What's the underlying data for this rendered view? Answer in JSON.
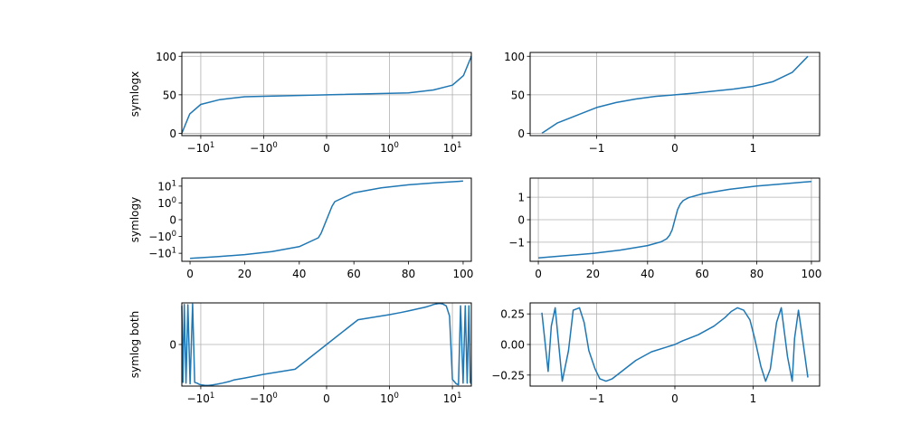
{
  "colors": {
    "line": "#1f77b4",
    "grid": "#b0b0b0",
    "frame": "#000000"
  },
  "chart_data": [
    {
      "type": "line",
      "row": 0,
      "col": 0,
      "ylabel": "symlogx",
      "xscale": "symlog",
      "yscale": "linear",
      "grid": true,
      "xlim": [
        -20,
        20
      ],
      "ylim": [
        -3,
        105
      ],
      "x_ticks": [
        {
          "value": -10,
          "label": "−10",
          "sup": "1"
        },
        {
          "value": -1,
          "label": "−10",
          "sup": "0"
        },
        {
          "value": 0,
          "label": "0",
          "sup": ""
        },
        {
          "value": 1,
          "label": "10",
          "sup": "0"
        },
        {
          "value": 10,
          "label": "10",
          "sup": "1"
        }
      ],
      "y_ticks": [
        {
          "value": 0,
          "label": "0"
        },
        {
          "value": 50,
          "label": "50"
        },
        {
          "value": 100,
          "label": "100"
        }
      ],
      "series": [
        {
          "x": [
            -20,
            -15,
            -10,
            -5,
            -2,
            0,
            2,
            5,
            10,
            15,
            20
          ],
          "y": [
            0,
            25,
            37.5,
            43.75,
            47.5,
            50,
            52.5,
            56.25,
            62.5,
            75,
            100
          ]
        }
      ]
    },
    {
      "type": "line",
      "row": 0,
      "col": 1,
      "ylabel": "",
      "xscale": "linear",
      "yscale": "linear",
      "grid": true,
      "xlim": [
        -1.85,
        1.85
      ],
      "ylim": [
        -3,
        105
      ],
      "x_ticks": [
        {
          "value": -1,
          "label": "−1"
        },
        {
          "value": 0,
          "label": "0"
        },
        {
          "value": 1,
          "label": "1"
        }
      ],
      "y_ticks": [
        {
          "value": 0,
          "label": "0"
        },
        {
          "value": 50,
          "label": "50"
        },
        {
          "value": 100,
          "label": "100"
        }
      ],
      "series": [
        {
          "x": [
            -1.7,
            -1.5,
            -1.25,
            -1.0,
            -0.75,
            -0.5,
            -0.25,
            0,
            0.25,
            0.5,
            0.75,
            1.0,
            1.25,
            1.5,
            1.7
          ],
          "y": [
            0,
            13.5,
            23.5,
            33.5,
            40,
            44.5,
            48,
            50,
            52.2,
            54.8,
            57.5,
            61,
            67,
            79,
            100
          ]
        }
      ]
    },
    {
      "type": "line",
      "row": 1,
      "col": 0,
      "ylabel": "symlogy",
      "xscale": "linear",
      "yscale": "symlog",
      "grid": false,
      "xlim": [
        -3,
        103
      ],
      "ylim": [
        -30,
        30
      ],
      "x_ticks": [
        {
          "value": 0,
          "label": "0"
        },
        {
          "value": 20,
          "label": "20"
        },
        {
          "value": 40,
          "label": "40"
        },
        {
          "value": 60,
          "label": "60"
        },
        {
          "value": 80,
          "label": "80"
        },
        {
          "value": 100,
          "label": "100"
        }
      ],
      "y_ticks": [
        {
          "value": 10,
          "label": "10",
          "sup": "1"
        },
        {
          "value": 1,
          "label": "10",
          "sup": "0"
        },
        {
          "value": 0,
          "label": "0",
          "sup": ""
        },
        {
          "value": -1,
          "label": "−10",
          "sup": "0"
        },
        {
          "value": -10,
          "label": "−10",
          "sup": "1"
        }
      ],
      "series": [
        {
          "x": [
            0,
            10,
            20,
            30,
            40,
            47,
            48,
            52,
            53,
            60,
            70,
            80,
            90,
            100
          ],
          "y": [
            -20,
            -16,
            -12,
            -8,
            -4,
            -1.2,
            -0.8,
            0.8,
            1.2,
            4,
            8,
            12,
            16,
            20
          ]
        }
      ]
    },
    {
      "type": "line",
      "row": 1,
      "col": 1,
      "ylabel": "",
      "xscale": "linear",
      "yscale": "linear",
      "grid": true,
      "xlim": [
        -3,
        103
      ],
      "ylim": [
        -1.85,
        1.85
      ],
      "x_ticks": [
        {
          "value": 0,
          "label": "0"
        },
        {
          "value": 20,
          "label": "20"
        },
        {
          "value": 40,
          "label": "40"
        },
        {
          "value": 60,
          "label": "60"
        },
        {
          "value": 80,
          "label": "80"
        },
        {
          "value": 100,
          "label": "100"
        }
      ],
      "y_ticks": [
        {
          "value": -1,
          "label": "−1"
        },
        {
          "value": 0,
          "label": "0"
        },
        {
          "value": 1,
          "label": "1"
        }
      ],
      "series": [
        {
          "x": [
            0,
            10,
            20,
            30,
            40,
            45,
            47,
            48,
            49,
            50,
            51,
            52,
            53,
            55,
            60,
            70,
            80,
            90,
            100
          ],
          "y": [
            -1.7,
            -1.6,
            -1.5,
            -1.35,
            -1.15,
            -0.98,
            -0.85,
            -0.7,
            -0.45,
            0,
            0.45,
            0.7,
            0.85,
            0.98,
            1.15,
            1.35,
            1.5,
            1.6,
            1.7
          ]
        }
      ]
    },
    {
      "type": "line",
      "row": 2,
      "col": 0,
      "ylabel": "symlog both",
      "xscale": "symlog",
      "yscale": "symlog",
      "grid": true,
      "y_linthresh": 0.01,
      "xlim": [
        -20,
        20
      ],
      "ylim": [
        -0.3,
        0.3
      ],
      "x_ticks": [
        {
          "value": -10,
          "label": "−10",
          "sup": "1"
        },
        {
          "value": -1,
          "label": "−10",
          "sup": "0"
        },
        {
          "value": 0,
          "label": "0",
          "sup": ""
        },
        {
          "value": 1,
          "label": "10",
          "sup": "0"
        },
        {
          "value": 10,
          "label": "10",
          "sup": "1"
        }
      ],
      "y_ticks": [
        {
          "value": 0,
          "label": "0"
        }
      ],
      "series": [
        {
          "x": [
            -20,
            -19.2,
            -18.3,
            -17.2,
            -16,
            -14.8,
            -13.5,
            -12.5,
            -11.5,
            -10.5,
            -9.5,
            -8.5,
            -7.5,
            -6.5,
            -5.5,
            -4.5,
            -3.5,
            -3,
            -2,
            -1,
            -0.5,
            0,
            0.5,
            1,
            1.5,
            2,
            2.5,
            3,
            3.5,
            4,
            4.5,
            5,
            5.5,
            6,
            6.5,
            7,
            8,
            9,
            10,
            11.5,
            12.5,
            13.5,
            14.8,
            16,
            17.2,
            18.3,
            19.2,
            20
          ],
          "y": [
            0.2,
            -0.18,
            0.24,
            -0.2,
            0.23,
            -0.22,
            0.26,
            -0.18,
            -0.2,
            -0.24,
            -0.26,
            -0.27,
            -0.27,
            -0.26,
            -0.23,
            -0.2,
            -0.16,
            -0.13,
            -0.1,
            -0.06,
            -0.03,
            0,
            0.03,
            0.06,
            0.08,
            0.1,
            0.12,
            0.14,
            0.16,
            0.18,
            0.21,
            0.24,
            0.26,
            0.27,
            0.27,
            0.26,
            0.2,
            0.05,
            -0.12,
            -0.22,
            -0.25,
            0.2,
            -0.2,
            0.2,
            -0.2,
            0.2,
            -0.18,
            -0.22
          ]
        }
      ]
    },
    {
      "type": "line",
      "row": 2,
      "col": 1,
      "ylabel": "",
      "xscale": "linear",
      "yscale": "linear",
      "grid": true,
      "xlim": [
        -1.85,
        1.85
      ],
      "ylim": [
        -0.34,
        0.34
      ],
      "x_ticks": [
        {
          "value": -1,
          "label": "−1"
        },
        {
          "value": 0,
          "label": "0"
        },
        {
          "value": 1,
          "label": "1"
        }
      ],
      "y_ticks": [
        {
          "value": 0.25,
          "label": "0.25"
        },
        {
          "value": 0,
          "label": "0.00"
        },
        {
          "value": -0.25,
          "label": "−0.25"
        }
      ],
      "series": [
        {
          "x": [
            -1.7,
            -1.62,
            -1.58,
            -1.53,
            -1.5,
            -1.44,
            -1.36,
            -1.3,
            -1.22,
            -1.16,
            -1.1,
            -1.02,
            -0.96,
            -0.88,
            -0.8,
            -0.72,
            -0.64,
            -0.5,
            -0.3,
            -0.1,
            0,
            0.1,
            0.3,
            0.5,
            0.64,
            0.72,
            0.8,
            0.88,
            0.96,
            1.02,
            1.1,
            1.16,
            1.22,
            1.3,
            1.36,
            1.44,
            1.5,
            1.53,
            1.58,
            1.62,
            1.7
          ],
          "y": [
            0.26,
            -0.22,
            0.15,
            0.3,
            0.1,
            -0.3,
            -0.05,
            0.28,
            0.3,
            0.18,
            -0.05,
            -0.2,
            -0.28,
            -0.3,
            -0.28,
            -0.24,
            -0.2,
            -0.13,
            -0.06,
            -0.02,
            0,
            0.03,
            0.08,
            0.15,
            0.22,
            0.27,
            0.3,
            0.28,
            0.2,
            0.05,
            -0.18,
            -0.3,
            -0.2,
            0.18,
            0.3,
            -0.1,
            -0.3,
            0.05,
            0.28,
            0.1,
            -0.27
          ]
        }
      ]
    }
  ]
}
